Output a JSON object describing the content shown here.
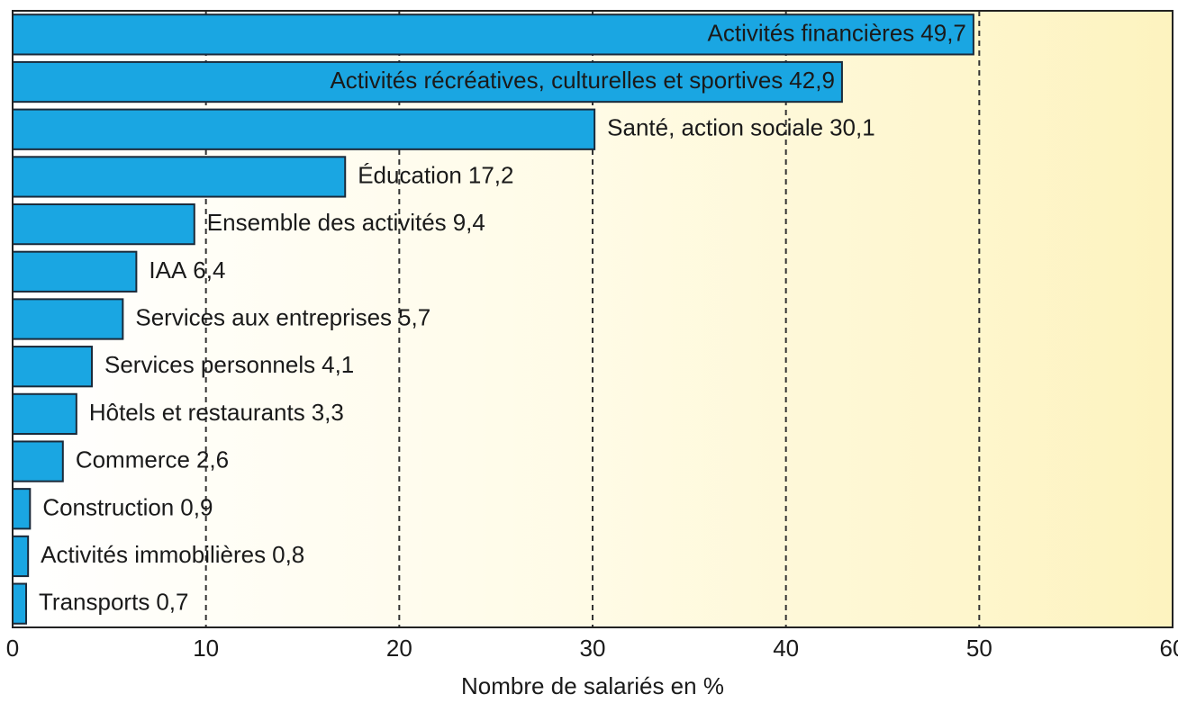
{
  "chart_data": {
    "type": "barh",
    "xlabel": "Nombre de salariés en %",
    "categories": [
      "Activités financières",
      "Activités récréatives, culturelles et sportives",
      "Santé, action sociale",
      "Éducation",
      "Ensemble des activités",
      "IAA",
      "Services aux entreprises",
      "Services personnels",
      "Hôtels et restaurants",
      "Commerce",
      "Construction",
      "Activités immobilières",
      "Transports"
    ],
    "values": [
      49.7,
      42.9,
      30.1,
      17.2,
      9.4,
      6.4,
      5.7,
      4.1,
      3.3,
      2.6,
      0.9,
      0.8,
      0.7
    ],
    "value_labels": [
      "49,7",
      "42,9",
      "30,1",
      "17,2",
      "9,4",
      "6,4",
      "5,7",
      "4,1",
      "3,3",
      "2,6",
      "0,9",
      "0,8",
      "0,7"
    ],
    "color": "#1aa6e2",
    "xlim": [
      0,
      60
    ],
    "xticks": [
      0,
      10,
      20,
      30,
      40,
      50,
      60
    ],
    "grid": true
  }
}
